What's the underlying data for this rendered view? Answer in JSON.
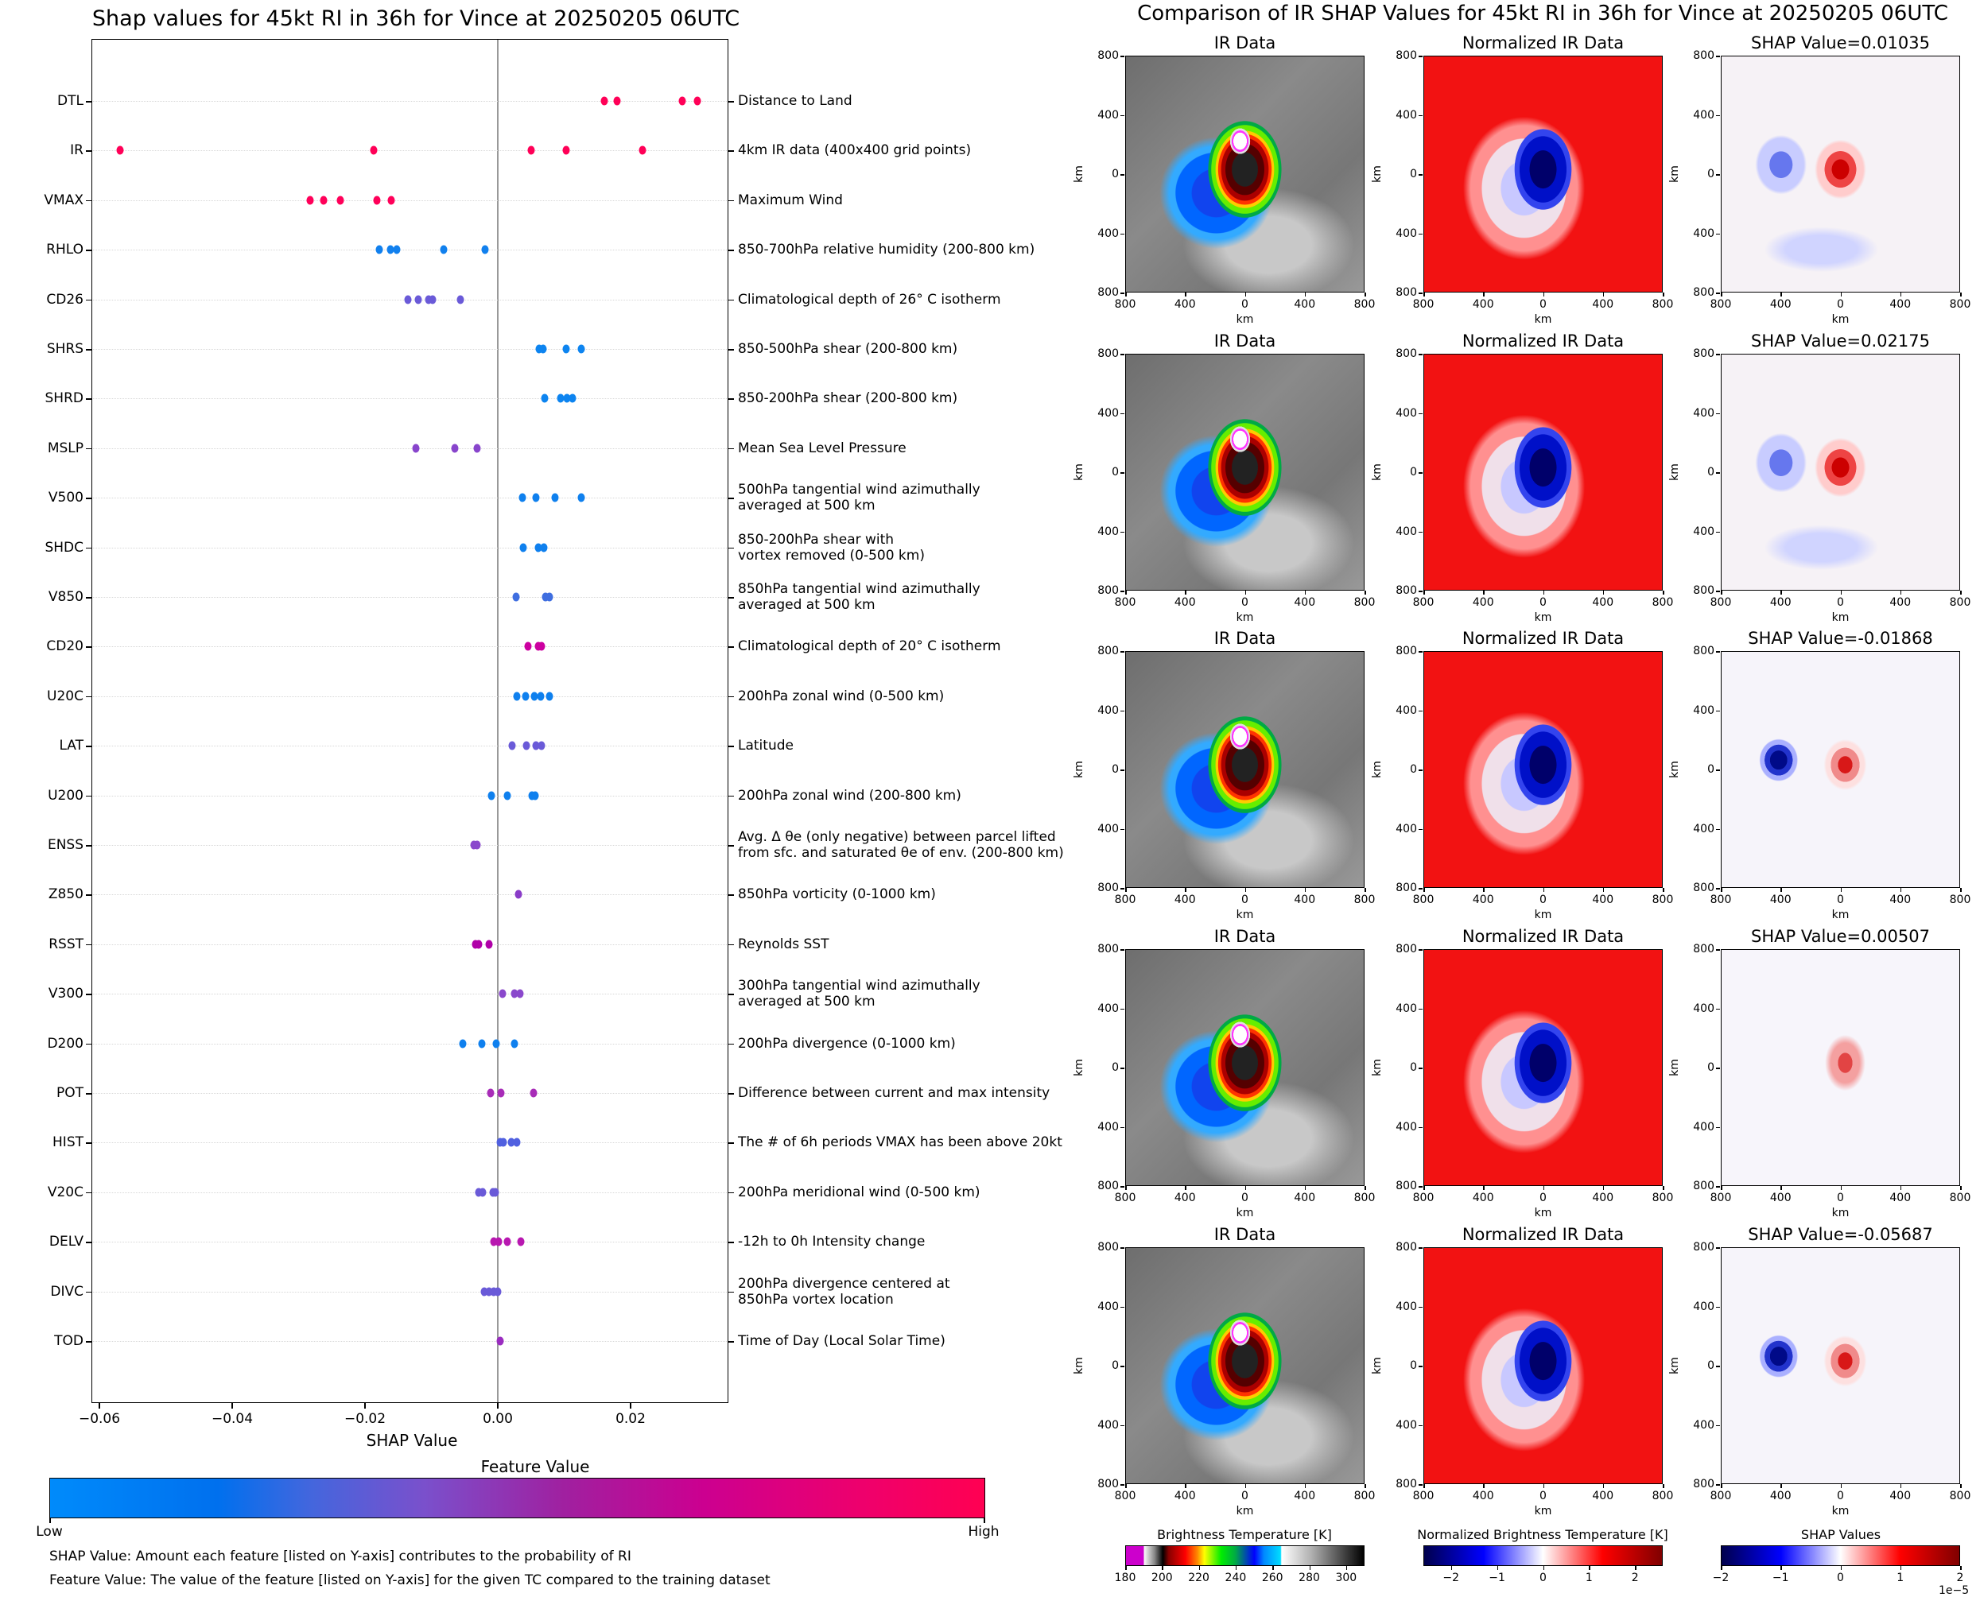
{
  "left_title": "Shap values for 45kt RI in 36h for Vince at 20250205 06UTC",
  "right_title": "Comparison of IR SHAP Values for 45kt RI in 36h for Vince at 20250205 06UTC",
  "colors": {
    "feature_low": "#008bfb",
    "feature_high": "#ff0052",
    "zero_line": "#999999"
  },
  "chart_data": [
    {
      "type": "scatter",
      "title": "Shap values for 45kt RI in 36h for Vince at 20250205 06UTC",
      "xlabel": "SHAP Value",
      "ylabel": "",
      "xlim": [
        -0.0612,
        0.0347
      ],
      "xticks": [
        -0.06,
        -0.04,
        -0.02,
        0.0,
        0.02
      ],
      "xtick_labels": [
        "−0.06",
        "−0.04",
        "−0.02",
        "0.00",
        "0.02"
      ],
      "grid": "horizontal dotted",
      "zero_line": true,
      "colorbar": {
        "title": "Feature Value",
        "low_label": "Low",
        "high_label": "High"
      },
      "notes": [
        "SHAP Value: Amount each feature [listed on Y-axis] contributes to the probability of RI",
        "Feature Value: The value of the feature [listed on Y-axis] for the given TC compared to the training dataset"
      ],
      "features": [
        {
          "name": "DTL",
          "description": "Distance to Land",
          "color": "#ff0057",
          "values": [
            0.016,
            0.018,
            0.0278,
            0.03
          ]
        },
        {
          "name": "IR",
          "description": "4km IR data (400x400 grid points)",
          "color": "#ff0057",
          "values": [
            -0.05687,
            -0.01868,
            0.00507,
            0.01035,
            0.02175
          ]
        },
        {
          "name": "VMAX",
          "description": "Maximum Wind",
          "color": "#ff0059",
          "values": [
            -0.0283,
            -0.0262,
            -0.0237,
            -0.0182,
            -0.016
          ]
        },
        {
          "name": "RHLO",
          "description": "850-700hPa relative humidity (200-800 km)",
          "color": "#1180ee",
          "values": [
            -0.0179,
            -0.0162,
            -0.0152,
            -0.0081,
            -0.0019
          ]
        },
        {
          "name": "CD26",
          "description": "Climatological depth of 26° C isotherm",
          "color": "#6a5ad8",
          "values": [
            -0.0135,
            -0.012,
            -0.0104,
            -0.0098,
            -0.0056
          ]
        },
        {
          "name": "SHRS",
          "description": "850-500hPa shear (200-800 km)",
          "color": "#0d84f0",
          "values": [
            0.0062,
            0.0068,
            0.0103,
            0.0126
          ]
        },
        {
          "name": "SHRD",
          "description": "850-200hPa shear (200-800 km)",
          "color": "#0d84f0",
          "values": [
            0.0071,
            0.0095,
            0.0104,
            0.0113
          ]
        },
        {
          "name": "MSLP",
          "description": "Mean Sea Level Pressure",
          "color": "#8845cc",
          "values": [
            -0.0123,
            -0.0065,
            -0.0031
          ]
        },
        {
          "name": "V500",
          "description": "500hPa tangential wind azimuthally\naveraged at 500 km",
          "color": "#0f80ee",
          "values": [
            0.0037,
            0.0058,
            0.0086,
            0.0126
          ]
        },
        {
          "name": "SHDC",
          "description": "850-200hPa shear with\nvortex removed (0-500 km)",
          "color": "#0f80ee",
          "values": [
            0.0038,
            0.0061,
            0.0069
          ]
        },
        {
          "name": "V850",
          "description": "850hPa tangential wind azimuthally\naveraged at 500 km",
          "color": "#3f6ee0",
          "values": [
            0.0028,
            0.0072,
            0.0078
          ]
        },
        {
          "name": "CD20",
          "description": "Climatological depth of 20° C isotherm",
          "color": "#cc00a0",
          "values": [
            0.0046,
            0.0061,
            0.0066
          ]
        },
        {
          "name": "U20C",
          "description": "200hPa zonal wind (0-500 km)",
          "color": "#0f80ee",
          "values": [
            0.0029,
            0.0042,
            0.0055,
            0.0065,
            0.0078
          ]
        },
        {
          "name": "LAT",
          "description": "Latitude",
          "color": "#6a5ad8",
          "values": [
            0.0022,
            0.0043,
            0.0057,
            0.0066
          ]
        },
        {
          "name": "U200",
          "description": "200hPa zonal wind (200-800 km)",
          "color": "#0f80ee",
          "values": [
            -0.001,
            0.0014,
            0.0051,
            0.0056
          ]
        },
        {
          "name": "ENSS",
          "description": "Avg. Δ θe (only negative) between parcel lifted\nfrom sfc. and saturated θe of env. (200-800 km)",
          "color": "#8a48cc",
          "values": [
            -0.0036,
            -0.0031
          ]
        },
        {
          "name": "Z850",
          "description": "850hPa vorticity (0-1000 km)",
          "color": "#8a3cc8",
          "values": [
            0.0031
          ]
        },
        {
          "name": "RSST",
          "description": "Reynolds SST",
          "color": "#b000a8",
          "values": [
            -0.0034,
            -0.0029,
            -0.0013
          ]
        },
        {
          "name": "V300",
          "description": "300hPa tangential wind azimuthally\naveraged at 500 km",
          "color": "#8a48cc",
          "values": [
            0.0007,
            0.0025,
            0.0034
          ]
        },
        {
          "name": "D200",
          "description": "200hPa divergence (0-1000 km)",
          "color": "#0f80ee",
          "values": [
            -0.0053,
            -0.0024,
            -0.0002,
            0.0025
          ]
        },
        {
          "name": "POT",
          "description": "Difference between current and max intensity",
          "color": "#a82cb8",
          "values": [
            -0.0011,
            0.0005,
            0.0054
          ]
        },
        {
          "name": "HIST",
          "description": "The # of 6h periods VMAX has been above 20kt",
          "color": "#5060e0",
          "values": [
            0.0003,
            0.0008,
            0.002,
            0.0029
          ]
        },
        {
          "name": "V20C",
          "description": "200hPa meridional wind (0-500 km)",
          "color": "#6a5ad8",
          "values": [
            -0.0029,
            -0.0023,
            -0.0007,
            -0.0004
          ]
        },
        {
          "name": "DELV",
          "description": "-12h to 0h Intensity change",
          "color": "#b818b0",
          "values": [
            -0.0006,
            0.0001,
            0.0014,
            0.0035
          ]
        },
        {
          "name": "DIVC",
          "description": "200hPa divergence centered at\n850hPa vortex location",
          "color": "#6a5ad8",
          "values": [
            -0.002,
            -0.0013,
            -0.0006,
            0.0
          ]
        },
        {
          "name": "TOD",
          "description": "Time of Day (Local Solar Time)",
          "color": "#9a2cc0",
          "values": [
            0.0004
          ]
        }
      ]
    },
    {
      "type": "heatmap",
      "title": "Comparison of IR SHAP Values for 45kt RI in 36h for Vince at 20250205 06UTC",
      "column_titles": [
        "IR Data",
        "Normalized IR Data"
      ],
      "shap_titles": [
        "SHAP Value=0.01035",
        "SHAP Value=0.02175",
        "SHAP Value=-0.01868",
        "SHAP Value=0.00507",
        "SHAP Value=-0.05687"
      ],
      "shap_values": [
        0.01035,
        0.02175,
        -0.01868,
        0.00507,
        -0.05687
      ],
      "xlabel": "km",
      "ylabel": "km",
      "xtick_labels": [
        "800",
        "400",
        "0",
        "400",
        "800"
      ],
      "ytick_labels": [
        "800",
        "400",
        "0",
        "400",
        "800"
      ],
      "extent_km": [
        -800,
        800
      ],
      "colorbars": [
        {
          "title": "Brightness Temperature [K]",
          "ticks": [
            "180",
            "200",
            "220",
            "240",
            "260",
            "280",
            "300"
          ],
          "range": [
            180,
            310
          ]
        },
        {
          "title": "Normalized Brightness Temperature [K]",
          "ticks": [
            "−2",
            "−1",
            "0",
            "1",
            "2"
          ],
          "range": [
            -2.6,
            2.6
          ]
        },
        {
          "title": "SHAP Values",
          "ticks": [
            "−2",
            "−1",
            "0",
            "1",
            "2"
          ],
          "range": [
            -2,
            2
          ],
          "offset_label": "1e−5"
        }
      ]
    }
  ]
}
